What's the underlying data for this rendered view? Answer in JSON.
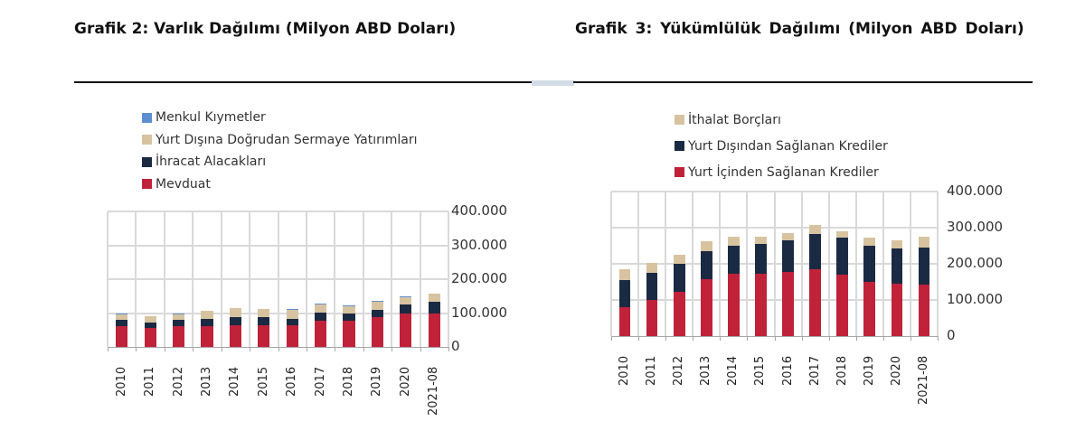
{
  "left": {
    "title": "Grafik 2: Varlık Dağılımı (Milyon ABD Doları)",
    "legend": [
      {
        "label": "Menkul Kıymetler",
        "color": "#5b8fd0"
      },
      {
        "label": "Yurt Dışına Doğrudan Sermaye Yatırımları",
        "color": "#d8c3a0"
      },
      {
        "label": "İhracat Alacakları",
        "color": "#1b2a43"
      },
      {
        "label": "Mevduat",
        "color": "#c0223a"
      }
    ],
    "y_ticks": [
      "400.000",
      "300.000",
      "200.000",
      "100.000",
      "0"
    ]
  },
  "right": {
    "title": "Grafik 3: Yükümlülük Dağılımı (Milyon ABD Doları)",
    "legend": [
      {
        "label": "İthalat Borçları",
        "color": "#d8c3a0"
      },
      {
        "label": "Yurt Dışından Sağlanan Krediler",
        "color": "#1b2a43"
      },
      {
        "label": "Yurt İçinden Sağlanan Krediler",
        "color": "#c0223a"
      }
    ],
    "y_ticks": [
      "400.000",
      "300.000",
      "200.000",
      "100.000",
      "0"
    ]
  },
  "chart_data": [
    {
      "type": "bar",
      "stacked": true,
      "title": "Grafik 2: Varlık Dağılımı (Milyon ABD Doları)",
      "xlabel": "",
      "ylabel": "",
      "ylim": [
        0,
        400000
      ],
      "y_ticks": [
        0,
        100000,
        200000,
        300000,
        400000
      ],
      "y_axis_position": "right",
      "grid": true,
      "legend_position": "top",
      "categories": [
        "2010",
        "2011",
        "2012",
        "2013",
        "2014",
        "2015",
        "2016",
        "2017",
        "2018",
        "2019",
        "2020",
        "2021-08"
      ],
      "series": [
        {
          "name": "Mevduat",
          "color": "#c0223a",
          "values": [
            62000,
            55000,
            62000,
            62000,
            64000,
            64000,
            64000,
            77000,
            77000,
            88000,
            98000,
            100000
          ]
        },
        {
          "name": "İhracat Alacakları",
          "color": "#1b2a43",
          "values": [
            19000,
            18000,
            17000,
            21000,
            25000,
            23000,
            20000,
            25000,
            22000,
            22000,
            28000,
            33000
          ]
        },
        {
          "name": "Yurt Dışına Doğrudan Sermaye Yatırımları",
          "color": "#d8c3a0",
          "values": [
            16000,
            17000,
            18000,
            24000,
            25000,
            25000,
            26000,
            24000,
            22000,
            24000,
            22000,
            24000
          ]
        },
        {
          "name": "Menkul Kıymetler",
          "color": "#5b8fd0",
          "values": [
            1000,
            1000,
            1000,
            1000,
            1000,
            1000,
            1000,
            1000,
            1000,
            1000,
            1000,
            1000
          ]
        }
      ]
    },
    {
      "type": "bar",
      "stacked": true,
      "title": "Grafik 3: Yükümlülük Dağılımı (Milyon ABD Doları)",
      "xlabel": "",
      "ylabel": "",
      "ylim": [
        0,
        400000
      ],
      "y_ticks": [
        0,
        100000,
        200000,
        300000,
        400000
      ],
      "y_axis_position": "right",
      "grid": true,
      "legend_position": "top",
      "categories": [
        "2010",
        "2011",
        "2012",
        "2013",
        "2014",
        "2015",
        "2016",
        "2017",
        "2018",
        "2019",
        "2020",
        "2021-08"
      ],
      "series": [
        {
          "name": "Yurt İçinden Sağlanan Krediler",
          "color": "#c0223a",
          "values": [
            80000,
            100000,
            122000,
            157000,
            172000,
            172000,
            177000,
            184000,
            171000,
            151000,
            146000,
            143000
          ]
        },
        {
          "name": "Yurt Dışından Sağlanan Krediler",
          "color": "#1b2a43",
          "values": [
            76000,
            76000,
            77000,
            77000,
            78000,
            84000,
            89000,
            98000,
            101000,
            98000,
            96000,
            103000
          ]
        },
        {
          "name": "İthalat Borçları",
          "color": "#d8c3a0",
          "values": [
            28000,
            27000,
            27000,
            28000,
            26000,
            20000,
            20000,
            25000,
            19000,
            23000,
            22000,
            30000
          ]
        }
      ]
    }
  ]
}
